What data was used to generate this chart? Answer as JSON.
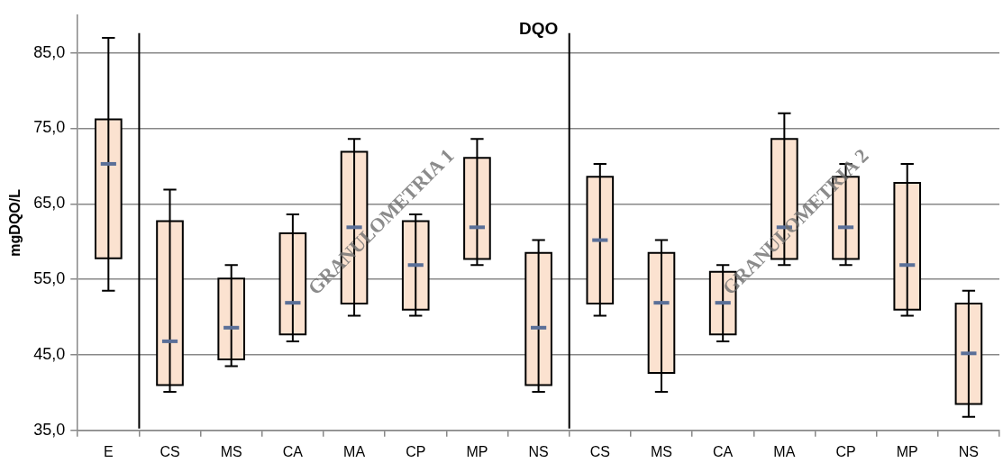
{
  "chart_data": {
    "type": "box",
    "title": "DQO",
    "ylabel": "mgDQO/L",
    "categories": [
      "E",
      "CS",
      "MS",
      "CA",
      "MA",
      "CP",
      "MP",
      "NS",
      "CS",
      "MS",
      "CA",
      "MA",
      "CP",
      "MP",
      "NS"
    ],
    "series": [
      {
        "color": "#fbe2d0",
        "boxes": [
          {
            "low": 53.5,
            "q1": 57.8,
            "median": 70.3,
            "q3": 76.2,
            "high": 87.0
          },
          {
            "low": 40.1,
            "q1": 41.0,
            "median": 46.8,
            "q3": 62.7,
            "high": 66.9
          },
          {
            "low": 43.5,
            "q1": 44.4,
            "median": 48.6,
            "q3": 55.1,
            "high": 56.9
          },
          {
            "low": 46.8,
            "q1": 47.7,
            "median": 51.9,
            "q3": 61.1,
            "high": 63.6
          },
          {
            "low": 50.2,
            "q1": 51.8,
            "median": 61.9,
            "q3": 71.9,
            "high": 73.6
          },
          {
            "low": 50.2,
            "q1": 51.0,
            "median": 56.9,
            "q3": 62.7,
            "high": 63.6
          },
          {
            "low": 56.9,
            "q1": 57.7,
            "median": 61.9,
            "q3": 71.1,
            "high": 73.6
          },
          {
            "low": 40.1,
            "q1": 41.0,
            "median": 48.6,
            "q3": 58.5,
            "high": 60.2
          },
          {
            "low": 50.2,
            "q1": 51.8,
            "median": 60.2,
            "q3": 68.6,
            "high": 70.3
          },
          {
            "low": 40.1,
            "q1": 42.6,
            "median": 51.9,
            "q3": 58.5,
            "high": 60.2
          },
          {
            "low": 46.8,
            "q1": 47.7,
            "median": 51.9,
            "q3": 56.0,
            "high": 56.9
          },
          {
            "low": 56.9,
            "q1": 57.7,
            "median": 61.9,
            "q3": 73.6,
            "high": 77.0
          },
          {
            "low": 56.9,
            "q1": 57.7,
            "median": 61.9,
            "q3": 68.6,
            "high": 70.3
          },
          {
            "low": 50.2,
            "q1": 51.0,
            "median": 56.9,
            "q3": 67.8,
            "high": 70.3
          },
          {
            "low": 36.8,
            "q1": 38.5,
            "median": 45.2,
            "q3": 51.8,
            "high": 53.5
          }
        ]
      }
    ],
    "ylim": [
      35,
      90
    ],
    "yticks": [
      {
        "value": 35,
        "label": "35,0"
      },
      {
        "value": 45,
        "label": "45,0"
      },
      {
        "value": 55,
        "label": "55,0"
      },
      {
        "value": 65,
        "label": "65,0"
      },
      {
        "value": 75,
        "label": "75,0"
      },
      {
        "value": 85,
        "label": "85,0"
      }
    ],
    "grid": "y",
    "legend": false,
    "annotations": [
      "GRANULOMETRIA 1",
      "GRANULOMETRIA 2"
    ]
  }
}
